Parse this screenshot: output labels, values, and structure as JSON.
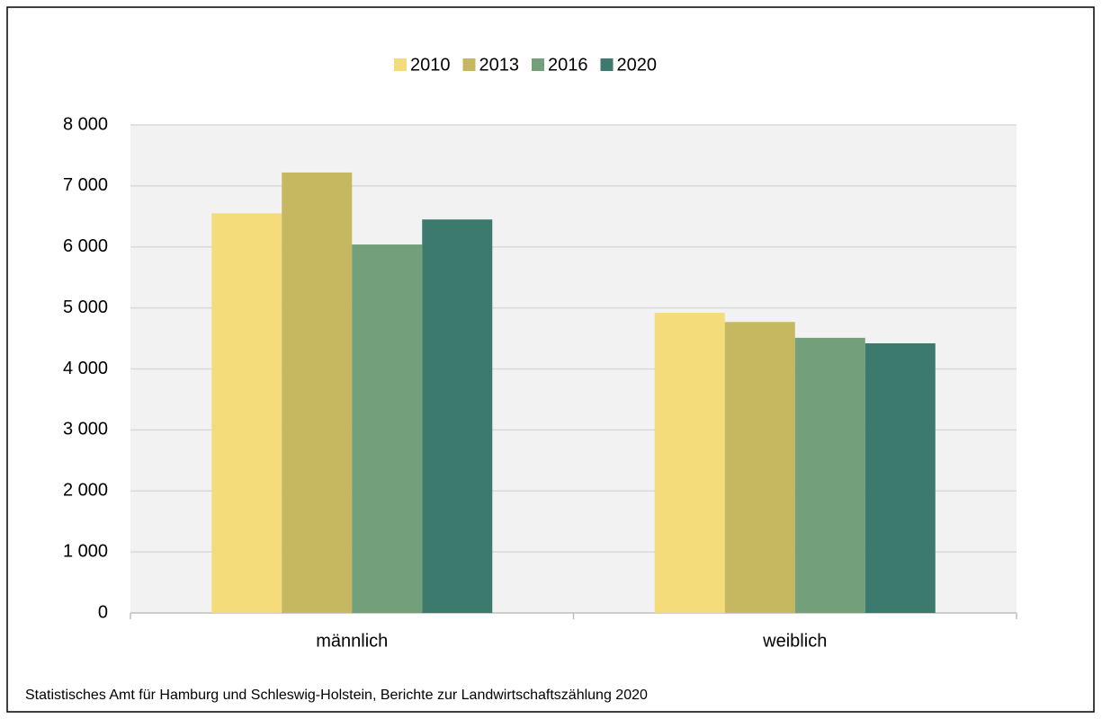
{
  "chart_data": {
    "type": "bar",
    "categories": [
      "männlich",
      "weiblich"
    ],
    "series": [
      {
        "name": "2010",
        "color": "#f5dc7a",
        "values": [
          6550,
          4920
        ]
      },
      {
        "name": "2013",
        "color": "#c5b860",
        "values": [
          7220,
          4770
        ]
      },
      {
        "name": "2016",
        "color": "#739f7a",
        "values": [
          6040,
          4510
        ]
      },
      {
        "name": "2020",
        "color": "#3d7a6e",
        "values": [
          6450,
          4420
        ]
      }
    ],
    "ylim": [
      0,
      8000
    ],
    "yticks": [
      0,
      {
        "value": 1000,
        "label": "1 000"
      },
      {
        "value": 2000,
        "label": "2 000"
      },
      {
        "value": 3000,
        "label": "3 000"
      },
      {
        "value": 4000,
        "label": "4 000"
      },
      {
        "value": 5000,
        "label": "5 000"
      },
      {
        "value": 6000,
        "label": "6 000"
      },
      {
        "value": 7000,
        "label": "7 000"
      },
      {
        "value": 8000,
        "label": "8 000"
      }
    ],
    "grid": true,
    "legend": "top",
    "source": "Statistisches Amt für Hamburg und Schleswig-Holstein,  Berichte zur Landwirtschaftszählung  2020"
  }
}
